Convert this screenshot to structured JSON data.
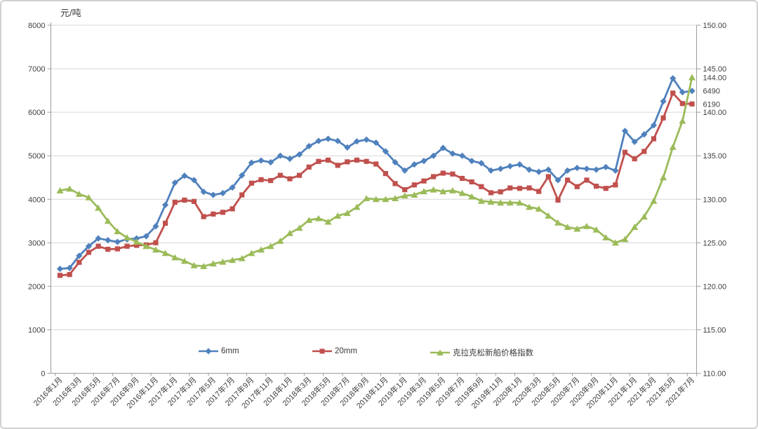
{
  "chart_data": {
    "type": "line",
    "title": "",
    "grid": true,
    "legend_position": "bottom-inside",
    "y_left": {
      "title": "元/吨",
      "min": 0,
      "max": 8000,
      "step": 1000,
      "tick_labels": [
        "8000",
        "7000",
        "6000",
        "5000",
        "4000",
        "3000",
        "2000",
        "1000",
        "0"
      ]
    },
    "y_right": {
      "min": 110,
      "max": 150,
      "step": 5,
      "tick_labels": [
        "150.00",
        "145.00",
        "140.00",
        "135.00",
        "130.00",
        "125.00",
        "120.00",
        "115.00",
        "110.00"
      ]
    },
    "x_label_every": 2,
    "x_labels": [
      "2016年1月",
      "2016年2月",
      "2016年3月",
      "2016年4月",
      "2016年5月",
      "2016年6月",
      "2016年7月",
      "2016年8月",
      "2016年9月",
      "2016年10月",
      "2016年11月",
      "2016年12月",
      "2017年1月",
      "2017年2月",
      "2017年3月",
      "2017年4月",
      "2017年5月",
      "2017年6月",
      "2017年7月",
      "2017年8月",
      "2017年9月",
      "2017年10月",
      "2017年11月",
      "2017年12月",
      "2018年1月",
      "2018年2月",
      "2018年3月",
      "2018年4月",
      "2018年5月",
      "2018年6月",
      "2018年7月",
      "2018年8月",
      "2018年9月",
      "2018年10月",
      "2018年11月",
      "2018年12月",
      "2019年1月",
      "2019年2月",
      "2019年3月",
      "2019年4月",
      "2019年5月",
      "2019年6月",
      "2019年7月",
      "2019年8月",
      "2019年9月",
      "2019年10月",
      "2019年11月",
      "2019年12月",
      "2020年1月",
      "2020年2月",
      "2020年3月",
      "2020年4月",
      "2020年5月",
      "2020年6月",
      "2020年7月",
      "2020年8月",
      "2020年9月",
      "2020年10月",
      "2020年11月",
      "2020年12月",
      "2021年1月",
      "2021年2月",
      "2021年3月",
      "2021年4月",
      "2021年5月",
      "2021年6月",
      "2021年7月"
    ],
    "series": [
      {
        "name": "6mm",
        "color": "#4F81BD",
        "marker": "diamond",
        "axis": "left",
        "end_label": "6490",
        "values": [
          2400,
          2420,
          2700,
          2920,
          3100,
          3060,
          3020,
          3080,
          3100,
          3150,
          3380,
          3870,
          4380,
          4540,
          4440,
          4170,
          4100,
          4140,
          4270,
          4550,
          4840,
          4890,
          4850,
          5000,
          4930,
          5030,
          5220,
          5340,
          5390,
          5340,
          5190,
          5330,
          5370,
          5300,
          5100,
          4850,
          4660,
          4800,
          4880,
          5000,
          5180,
          5050,
          5000,
          4880,
          4830,
          4660,
          4700,
          4760,
          4800,
          4680,
          4630,
          4680,
          4440,
          4660,
          4720,
          4700,
          4680,
          4740,
          4660,
          5570,
          5320,
          5490,
          5700,
          6250,
          6780,
          6460,
          6490
        ]
      },
      {
        "name": "20mm",
        "color": "#C0504D",
        "marker": "square",
        "axis": "left",
        "end_label": "6190",
        "values": [
          2250,
          2270,
          2550,
          2780,
          2920,
          2850,
          2860,
          2920,
          2940,
          2950,
          3000,
          3450,
          3930,
          3980,
          3950,
          3600,
          3660,
          3700,
          3780,
          4100,
          4370,
          4450,
          4430,
          4550,
          4470,
          4550,
          4740,
          4870,
          4900,
          4780,
          4860,
          4900,
          4870,
          4810,
          4590,
          4360,
          4220,
          4330,
          4420,
          4520,
          4600,
          4580,
          4480,
          4400,
          4290,
          4150,
          4170,
          4260,
          4250,
          4260,
          4180,
          4520,
          3980,
          4440,
          4290,
          4440,
          4300,
          4250,
          4330,
          5080,
          4930,
          5100,
          5390,
          5870,
          6440,
          6200,
          6190
        ]
      },
      {
        "name": "克拉克松新船价格指数",
        "color": "#9BBB59",
        "marker": "triangle",
        "axis": "right",
        "end_label": "144.00",
        "values": [
          131.0,
          131.2,
          130.6,
          130.2,
          129.0,
          127.5,
          126.3,
          125.6,
          125.1,
          124.6,
          124.2,
          123.8,
          123.3,
          122.9,
          122.4,
          122.3,
          122.6,
          122.8,
          123.0,
          123.2,
          123.8,
          124.2,
          124.6,
          125.2,
          126.1,
          126.7,
          127.6,
          127.8,
          127.4,
          128.1,
          128.4,
          129.1,
          130.1,
          130.0,
          130.0,
          130.1,
          130.4,
          130.5,
          130.9,
          131.1,
          130.9,
          131.0,
          130.7,
          130.3,
          129.8,
          129.7,
          129.6,
          129.6,
          129.6,
          129.1,
          128.9,
          128.1,
          127.3,
          126.8,
          126.6,
          126.9,
          126.5,
          125.6,
          125.0,
          125.4,
          126.8,
          128.0,
          129.8,
          132.5,
          136.0,
          139.0,
          144.0
        ]
      }
    ]
  }
}
